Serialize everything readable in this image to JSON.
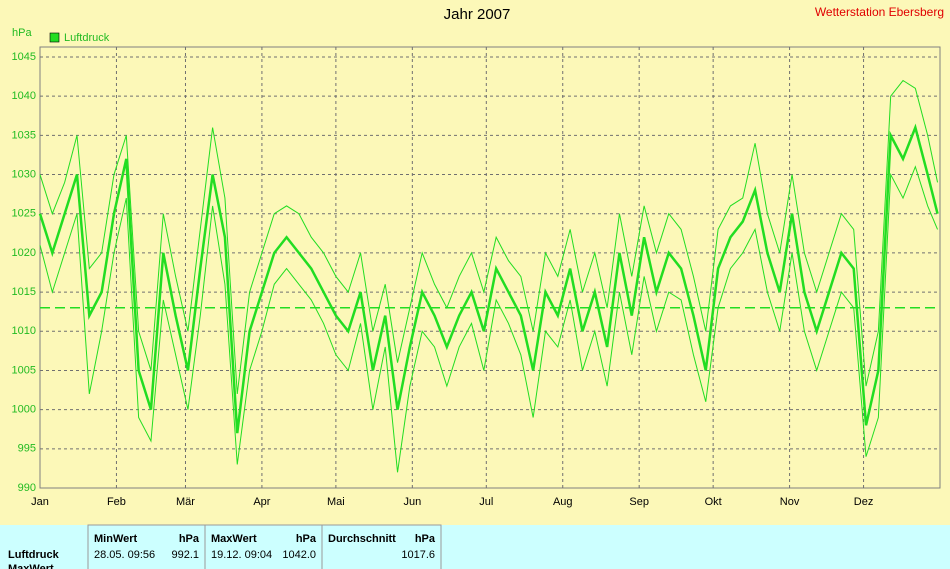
{
  "chart_data": {
    "type": "line",
    "title": "Jahr 2007",
    "station": "Wetterstation Ebersberg",
    "y_label": "hPa",
    "legend": "top-left",
    "grid": true,
    "reference_line": 1013,
    "x": [
      0,
      5,
      10,
      15,
      20,
      25,
      30,
      35,
      40,
      45,
      50,
      55,
      60,
      65,
      70,
      75,
      80,
      85,
      90,
      95,
      100,
      105,
      110,
      115,
      120,
      125,
      130,
      135,
      140,
      145,
      150,
      155,
      160,
      165,
      170,
      175,
      180,
      185,
      190,
      195,
      200,
      205,
      210,
      215,
      220,
      225,
      230,
      235,
      240,
      245,
      250,
      255,
      260,
      265,
      270,
      275,
      280,
      285,
      290,
      295,
      300,
      305,
      310,
      315,
      320,
      325,
      330,
      335,
      340,
      345,
      350,
      355,
      360,
      364
    ],
    "xlim": [
      0,
      365
    ],
    "xticks": [
      {
        "value": 0,
        "label": "Jan"
      },
      {
        "value": 31,
        "label": "Feb"
      },
      {
        "value": 59,
        "label": "Mär"
      },
      {
        "value": 90,
        "label": "Apr"
      },
      {
        "value": 120,
        "label": "Mai"
      },
      {
        "value": 151,
        "label": "Jun"
      },
      {
        "value": 181,
        "label": "Jul"
      },
      {
        "value": 212,
        "label": "Aug"
      },
      {
        "value": 243,
        "label": "Sep"
      },
      {
        "value": 273,
        "label": "Okt"
      },
      {
        "value": 304,
        "label": "Nov"
      },
      {
        "value": 334,
        "label": "Dez"
      }
    ],
    "ylim": [
      990,
      1045
    ],
    "yticks": [
      990,
      995,
      1000,
      1005,
      1010,
      1015,
      1020,
      1025,
      1030,
      1035,
      1040,
      1045
    ],
    "series": [
      {
        "name": "Luftdruck",
        "color": "#22dd22",
        "values": [
          1025,
          1020,
          1025,
          1030,
          1012,
          1015,
          1025,
          1032,
          1005,
          1000,
          1020,
          1012,
          1005,
          1018,
          1030,
          1022,
          997,
          1010,
          1015,
          1020,
          1022,
          1020,
          1018,
          1015,
          1012,
          1010,
          1015,
          1005,
          1012,
          1000,
          1008,
          1015,
          1012,
          1008,
          1012,
          1015,
          1010,
          1018,
          1015,
          1012,
          1005,
          1015,
          1012,
          1018,
          1010,
          1015,
          1008,
          1020,
          1012,
          1022,
          1015,
          1020,
          1018,
          1012,
          1005,
          1018,
          1022,
          1024,
          1028,
          1020,
          1015,
          1025,
          1015,
          1010,
          1015,
          1020,
          1018,
          998,
          1005,
          1035,
          1032,
          1036,
          1030,
          1025
        ],
        "min": [
          1021,
          1015,
          1020,
          1025,
          1002,
          1010,
          1020,
          1027,
          999,
          996,
          1014,
          1007,
          1000,
          1012,
          1026,
          1016,
          993,
          1005,
          1010,
          1016,
          1018,
          1016,
          1014,
          1011,
          1007,
          1005,
          1011,
          1000,
          1008,
          992,
          1003,
          1010,
          1008,
          1003,
          1008,
          1011,
          1005,
          1014,
          1011,
          1007,
          999,
          1010,
          1008,
          1014,
          1005,
          1010,
          1003,
          1015,
          1007,
          1017,
          1010,
          1015,
          1014,
          1007,
          1001,
          1013,
          1018,
          1020,
          1023,
          1015,
          1010,
          1020,
          1010,
          1005,
          1010,
          1015,
          1013,
          994,
          999,
          1030,
          1027,
          1031,
          1026,
          1023
        ],
        "max": [
          1030,
          1025,
          1029,
          1035,
          1018,
          1020,
          1030,
          1035,
          1010,
          1005,
          1025,
          1017,
          1010,
          1023,
          1036,
          1027,
          1002,
          1015,
          1020,
          1025,
          1026,
          1025,
          1022,
          1020,
          1017,
          1015,
          1020,
          1010,
          1016,
          1006,
          1013,
          1020,
          1016,
          1013,
          1017,
          1020,
          1015,
          1022,
          1019,
          1017,
          1010,
          1020,
          1017,
          1023,
          1015,
          1020,
          1013,
          1025,
          1017,
          1026,
          1020,
          1025,
          1023,
          1017,
          1010,
          1023,
          1026,
          1027,
          1034,
          1025,
          1020,
          1030,
          1020,
          1015,
          1020,
          1025,
          1023,
          1003,
          1010,
          1040,
          1042,
          1041,
          1035,
          1029
        ]
      }
    ]
  },
  "table": {
    "headers": [
      [
        "MinWert",
        "hPa"
      ],
      [
        "MaxWert",
        "hPa"
      ],
      [
        "Durchschnitt",
        "hPa"
      ]
    ],
    "rows": [
      {
        "label": "Luftdruck",
        "cells": [
          [
            "28.05.  09:56",
            "992.1"
          ],
          [
            "19.12.  09:04",
            "1042.0"
          ],
          [
            "",
            "1017.6"
          ]
        ]
      },
      {
        "label": "MaxWert",
        "cells": []
      }
    ]
  }
}
